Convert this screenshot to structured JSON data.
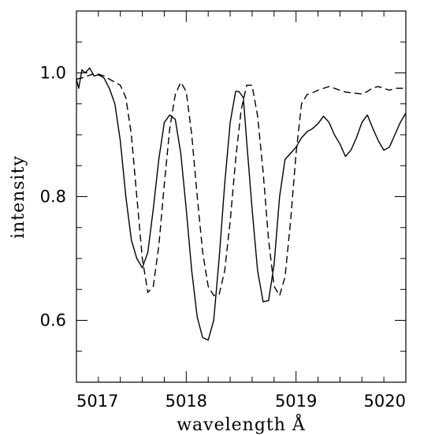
{
  "chart_data": {
    "type": "line",
    "xlabel": "wavelength Å",
    "ylabel": "intensity",
    "xlim": [
      5017,
      5020
    ],
    "ylim": [
      0.5,
      1.1
    ],
    "x_ticks": [
      "5017",
      "5018",
      "5019",
      "5020"
    ],
    "y_ticks": [
      "0.6",
      "0.8",
      "1.0"
    ],
    "grid": false,
    "legend": "none",
    "series": [
      {
        "style": "solid",
        "color": "#000000",
        "x": [
          5017.0,
          5017.02,
          5017.05,
          5017.08,
          5017.12,
          5017.16,
          5017.2,
          5017.25,
          5017.3,
          5017.35,
          5017.4,
          5017.45,
          5017.5,
          5017.55,
          5017.6,
          5017.65,
          5017.7,
          5017.75,
          5017.8,
          5017.85,
          5017.9,
          5017.95,
          5018.0,
          5018.05,
          5018.1,
          5018.15,
          5018.2,
          5018.25,
          5018.3,
          5018.35,
          5018.4,
          5018.45,
          5018.48,
          5018.52,
          5018.55,
          5018.6,
          5018.65,
          5018.7,
          5018.75,
          5018.8,
          5018.85,
          5018.9,
          5018.95,
          5019.0,
          5019.05,
          5019.1,
          5019.15,
          5019.2,
          5019.25,
          5019.3,
          5019.35,
          5019.4,
          5019.45,
          5019.5,
          5019.55,
          5019.6,
          5019.65,
          5019.7,
          5019.75,
          5019.8,
          5019.85,
          5019.9,
          5019.95,
          5020.0
        ],
        "y": [
          0.99,
          0.975,
          1.005,
          1.0,
          1.008,
          0.995,
          0.997,
          0.992,
          0.975,
          0.95,
          0.89,
          0.8,
          0.73,
          0.7,
          0.685,
          0.71,
          0.78,
          0.86,
          0.92,
          0.932,
          0.925,
          0.87,
          0.78,
          0.68,
          0.605,
          0.572,
          0.568,
          0.6,
          0.7,
          0.82,
          0.92,
          0.97,
          0.97,
          0.96,
          0.89,
          0.78,
          0.68,
          0.63,
          0.632,
          0.69,
          0.8,
          0.86,
          0.87,
          0.88,
          0.895,
          0.905,
          0.91,
          0.918,
          0.93,
          0.92,
          0.9,
          0.885,
          0.865,
          0.875,
          0.895,
          0.92,
          0.932,
          0.91,
          0.89,
          0.875,
          0.88,
          0.9,
          0.92,
          0.935
        ]
      },
      {
        "style": "dashed",
        "color": "#000000",
        "x": [
          5017.0,
          5017.05,
          5017.1,
          5017.15,
          5017.2,
          5017.25,
          5017.3,
          5017.35,
          5017.4,
          5017.45,
          5017.5,
          5017.55,
          5017.6,
          5017.65,
          5017.7,
          5017.75,
          5017.8,
          5017.85,
          5017.9,
          5017.95,
          5018.0,
          5018.05,
          5018.1,
          5018.15,
          5018.2,
          5018.25,
          5018.3,
          5018.35,
          5018.4,
          5018.45,
          5018.5,
          5018.55,
          5018.6,
          5018.65,
          5018.7,
          5018.75,
          5018.8,
          5018.85,
          5018.9,
          5018.95,
          5019.0,
          5019.05,
          5019.1,
          5019.15,
          5019.2,
          5019.25,
          5019.3,
          5019.35,
          5019.4,
          5019.45,
          5019.5,
          5019.55,
          5019.6,
          5019.65,
          5019.7,
          5019.75,
          5019.8,
          5019.85,
          5019.9,
          5019.95,
          5020.0
        ],
        "y": [
          0.99,
          0.992,
          0.995,
          0.998,
          0.998,
          0.995,
          0.99,
          0.985,
          0.98,
          0.96,
          0.9,
          0.8,
          0.7,
          0.645,
          0.655,
          0.72,
          0.82,
          0.91,
          0.965,
          0.985,
          0.97,
          0.9,
          0.8,
          0.71,
          0.655,
          0.64,
          0.642,
          0.68,
          0.76,
          0.86,
          0.94,
          0.98,
          0.98,
          0.93,
          0.84,
          0.73,
          0.655,
          0.64,
          0.67,
          0.76,
          0.87,
          0.95,
          0.965,
          0.968,
          0.972,
          0.975,
          0.978,
          0.975,
          0.972,
          0.969,
          0.968,
          0.967,
          0.966,
          0.97,
          0.976,
          0.978,
          0.975,
          0.972,
          0.975,
          0.975,
          0.975
        ]
      }
    ]
  }
}
